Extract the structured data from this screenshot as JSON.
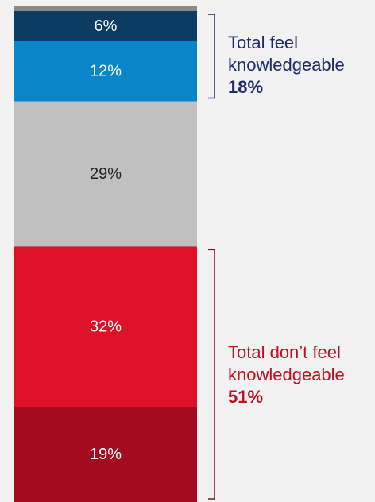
{
  "colors": {
    "background": "#f2f2f2",
    "top_strip": "#8a8a8a",
    "bracket": "#1f2a6b",
    "bracket_bottom": "#8b0c1c",
    "annotation_top": "#1f2a6b",
    "annotation_bottom": "#c00d22"
  },
  "chart_data": {
    "type": "bar",
    "stacked": true,
    "orientation": "vertical",
    "unit": "%",
    "segments": [
      {
        "value": 6,
        "label": "6%",
        "color": "#0d3c62",
        "text_color": "#ffffff"
      },
      {
        "value": 12,
        "label": "12%",
        "color": "#0a86c8",
        "text_color": "#ffffff"
      },
      {
        "value": 29,
        "label": "29%",
        "color": "#c0c0c0",
        "text_color": "#222222"
      },
      {
        "value": 32,
        "label": "32%",
        "color": "#dd1128",
        "text_color": "#ffffff"
      },
      {
        "value": 19,
        "label": "19%",
        "color": "#a30c1e",
        "text_color": "#ffffff"
      }
    ],
    "annotations": [
      {
        "line1": "Total feel",
        "line2": "knowledgeable",
        "total": "18%",
        "segments": [
          0,
          1
        ]
      },
      {
        "line1": "Total don’t feel",
        "line2": "knowledgeable",
        "total": "51%",
        "segments": [
          3,
          4
        ]
      }
    ]
  }
}
